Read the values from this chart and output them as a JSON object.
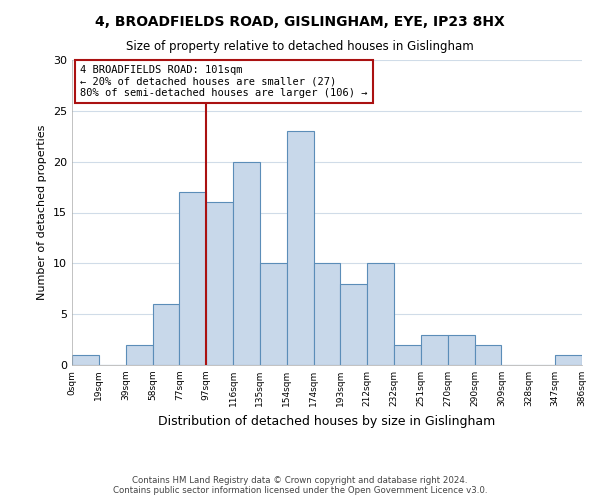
{
  "title_line1": "4, BROADFIELDS ROAD, GISLINGHAM, EYE, IP23 8HX",
  "title_line2": "Size of property relative to detached houses in Gislingham",
  "xlabel": "Distribution of detached houses by size in Gislingham",
  "ylabel": "Number of detached properties",
  "bar_heights": [
    1,
    0,
    2,
    6,
    17,
    16,
    20,
    10,
    23,
    10,
    8,
    10,
    2,
    3,
    3,
    2,
    0,
    0,
    1
  ],
  "bin_labels": [
    "0sqm",
    "19sqm",
    "39sqm",
    "58sqm",
    "77sqm",
    "97sqm",
    "116sqm",
    "135sqm",
    "154sqm",
    "174sqm",
    "193sqm",
    "212sqm",
    "232sqm",
    "251sqm",
    "270sqm",
    "290sqm",
    "309sqm",
    "328sqm",
    "347sqm",
    "386sqm"
  ],
  "bar_color": "#c8d8ea",
  "bar_edge_color": "#5b8db8",
  "vline_color": "#aa1111",
  "annotation_text": "4 BROADFIELDS ROAD: 101sqm\n← 20% of detached houses are smaller (27)\n80% of semi-detached houses are larger (106) →",
  "annotation_box_color": "#ffffff",
  "annotation_box_edge": "#aa1111",
  "ylim": [
    0,
    30
  ],
  "yticks": [
    0,
    5,
    10,
    15,
    20,
    25,
    30
  ],
  "footer_line1": "Contains HM Land Registry data © Crown copyright and database right 2024.",
  "footer_line2": "Contains public sector information licensed under the Open Government Licence v3.0.",
  "bg_color": "#ffffff",
  "fig_bg_color": "#ffffff",
  "grid_color": "#d0dce8"
}
